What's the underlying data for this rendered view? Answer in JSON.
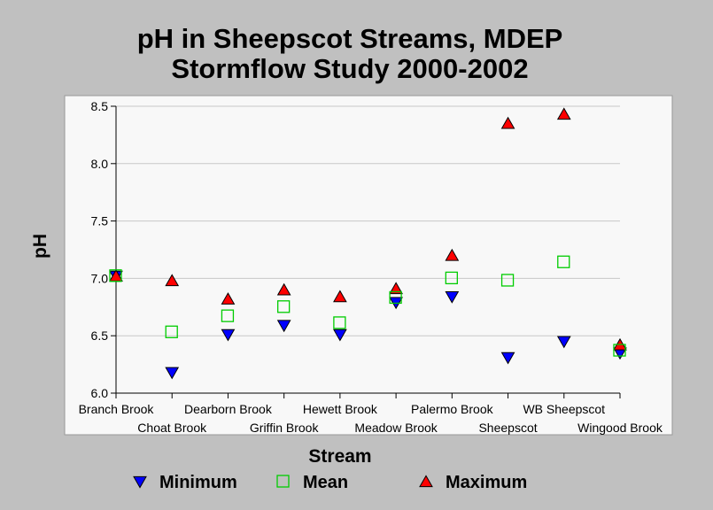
{
  "chart_data": {
    "type": "scatter",
    "title_line1": "pH in Sheepscot Streams, MDEP",
    "title_line2": "Stormflow Study 2000-2002",
    "xlabel": "Stream",
    "ylabel": "pH",
    "ylim": [
      6.0,
      8.5
    ],
    "y_ticks": [
      "6.0",
      "6.5",
      "7.0",
      "7.5",
      "8.0",
      "8.5"
    ],
    "grid": true,
    "legend_position": "bottom",
    "categories": [
      "Branch Brook",
      "Choat Brook",
      "Dearborn Brook",
      "Griffin Brook",
      "Hewett Brook",
      "Meadow Brook",
      "Palermo Brook",
      "Sheepscot",
      "WB Sheepscot",
      "Wingood Brook"
    ],
    "series": [
      {
        "name": "Minimum",
        "marker": "triangle-down",
        "color": "#0000ff",
        "filled": true,
        "values": [
          7.02,
          6.18,
          6.51,
          6.59,
          6.51,
          6.79,
          6.84,
          6.31,
          6.45,
          6.35
        ]
      },
      {
        "name": "Mean",
        "marker": "square",
        "color": "#00cc00",
        "filled": false,
        "values": [
          7.02,
          6.53,
          6.67,
          6.75,
          6.61,
          6.83,
          7.0,
          6.98,
          7.14,
          6.37
        ]
      },
      {
        "name": "Maximum",
        "marker": "triangle-up",
        "color": "#ff0000",
        "filled": true,
        "values": [
          7.02,
          6.98,
          6.82,
          6.9,
          6.84,
          6.91,
          7.2,
          8.35,
          8.43,
          6.42
        ]
      }
    ]
  }
}
